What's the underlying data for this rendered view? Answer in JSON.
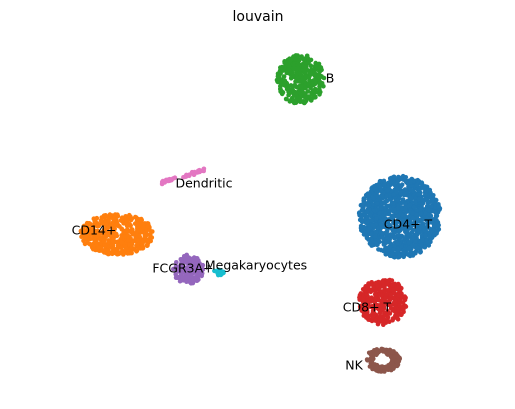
{
  "chart_data": {
    "type": "scatter",
    "title": "louvain",
    "xlabel": "",
    "ylabel": "",
    "grid": false,
    "legend": "on data",
    "axes_visible": false,
    "clusters": [
      {
        "label": "B",
        "color": "#2ca02c",
        "center": [
          0.3,
          0.88
        ],
        "spread": [
          0.22,
          0.17
        ],
        "count": 340
      },
      {
        "label": "CD4+ T",
        "color": "#1f77b4",
        "center": [
          0.76,
          0.41
        ],
        "spread": [
          0.38,
          0.28
        ],
        "count": 1100
      },
      {
        "label": "CD14+",
        "color": "#ff7f0e",
        "center": [
          -0.55,
          0.35
        ],
        "spread": [
          0.34,
          0.14
        ],
        "count": 480
      },
      {
        "label": "Dendritic",
        "color": "#e377c2",
        "center": [
          -0.24,
          0.55
        ],
        "spread": [
          0.2,
          0.03
        ],
        "count": 40
      },
      {
        "label": "FCGR3A+",
        "color": "#9467bd",
        "center": [
          -0.22,
          0.23
        ],
        "spread": [
          0.14,
          0.1
        ],
        "count": 160
      },
      {
        "label": "Megakaryocytes",
        "color": "#17becf",
        "center": [
          -0.08,
          0.22
        ],
        "spread": [
          0.06,
          0.02
        ],
        "count": 14
      },
      {
        "label": "CD8+ T",
        "color": "#d62728",
        "center": [
          0.68,
          0.12
        ],
        "spread": [
          0.22,
          0.16
        ],
        "count": 320
      },
      {
        "label": "NK",
        "color": "#8c564b",
        "center": [
          0.68,
          -0.08
        ],
        "spread": [
          0.16,
          0.08
        ],
        "count": 150
      }
    ]
  }
}
